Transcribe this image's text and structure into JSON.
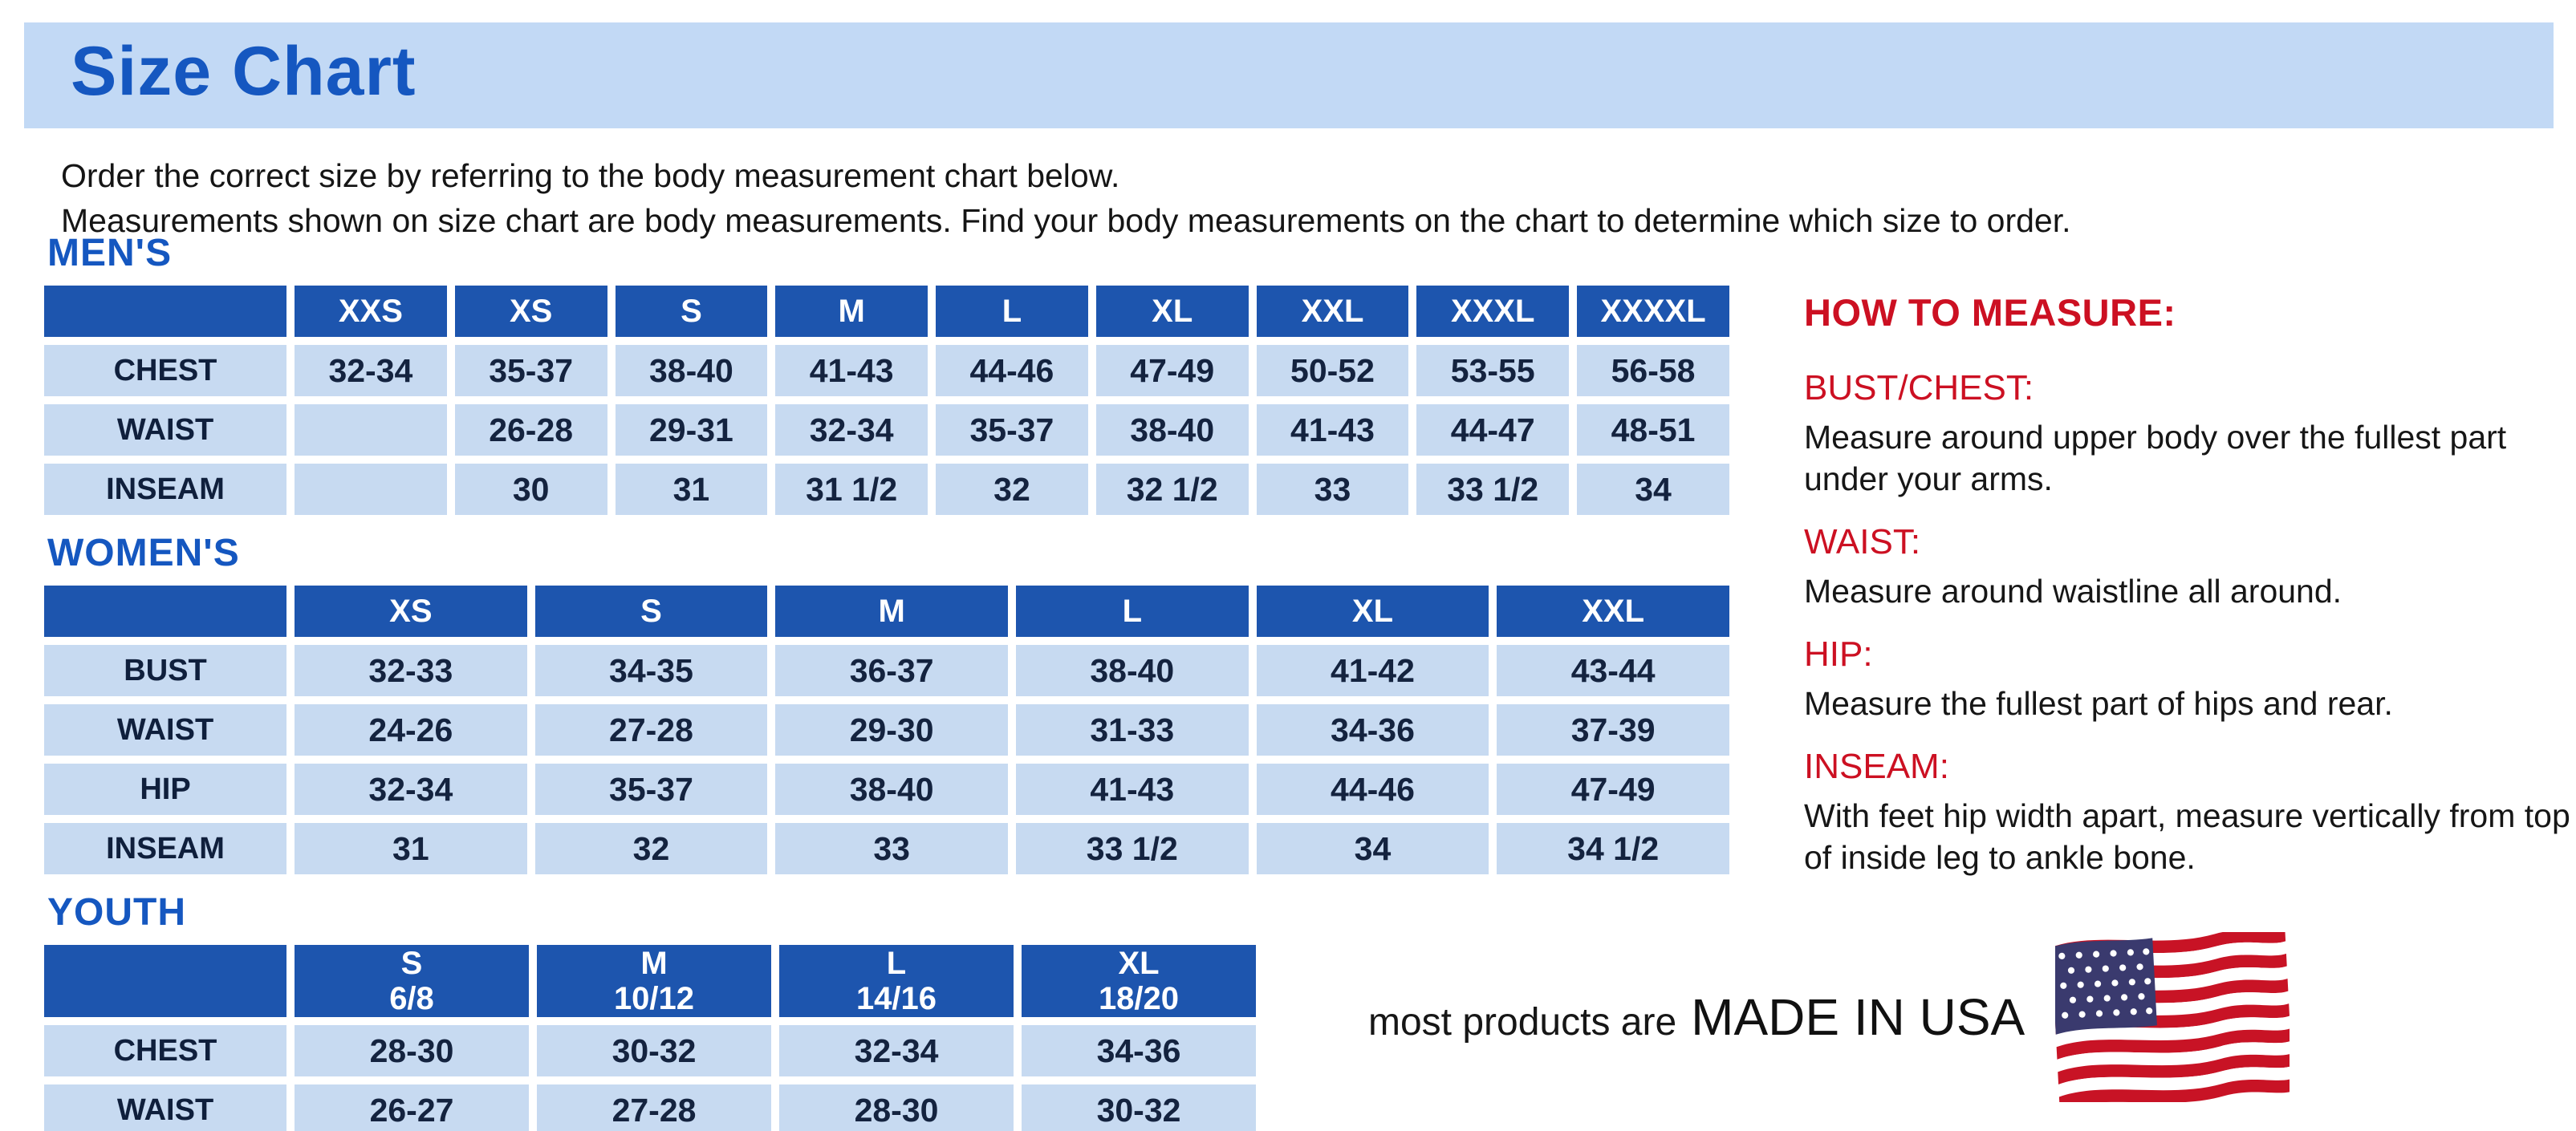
{
  "header": {
    "title": "Size Chart"
  },
  "intro": {
    "line1": "Order the correct size by referring to the body measurement chart below.",
    "line2": "Measurements shown on size chart are body measurements.  Find your body measurements on the chart to determine which size to order."
  },
  "tables": [
    {
      "id": "mens",
      "section_label": "MEN'S",
      "columns": [
        "XXS",
        "XS",
        "S",
        "M",
        "L",
        "XL",
        "XXL",
        "XXXL",
        "XXXXL"
      ],
      "rows": [
        {
          "label": "CHEST",
          "values": [
            "32-34",
            "35-37",
            "38-40",
            "41-43",
            "44-46",
            "47-49",
            "50-52",
            "53-55",
            "56-58"
          ]
        },
        {
          "label": "WAIST",
          "values": [
            "",
            "26-28",
            "29-31",
            "32-34",
            "35-37",
            "38-40",
            "41-43",
            "44-47",
            "48-51"
          ]
        },
        {
          "label": "INSEAM",
          "values": [
            "",
            "30",
            "31",
            "31 1/2",
            "32",
            "32 1/2",
            "33",
            "33 1/2",
            "34"
          ]
        }
      ]
    },
    {
      "id": "womens",
      "section_label": "WOMEN'S",
      "columns": [
        "XS",
        "S",
        "M",
        "L",
        "XL",
        "XXL"
      ],
      "rows": [
        {
          "label": "BUST",
          "values": [
            "32-33",
            "34-35",
            "36-37",
            "38-40",
            "41-42",
            "43-44"
          ]
        },
        {
          "label": "WAIST",
          "values": [
            "24-26",
            "27-28",
            "29-30",
            "31-33",
            "34-36",
            "37-39"
          ]
        },
        {
          "label": "HIP",
          "values": [
            "32-34",
            "35-37",
            "38-40",
            "41-43",
            "44-46",
            "47-49"
          ]
        },
        {
          "label": "INSEAM",
          "values": [
            "31",
            "32",
            "33",
            "33 1/2",
            "34",
            "34 1/2"
          ]
        }
      ]
    },
    {
      "id": "youth",
      "section_label": "YOUTH",
      "columns": [
        "S\n6/8",
        "M\n10/12",
        "L\n14/16",
        "XL\n18/20"
      ],
      "rows": [
        {
          "label": "CHEST",
          "values": [
            "28-30",
            "30-32",
            "32-34",
            "34-36"
          ]
        },
        {
          "label": "WAIST",
          "values": [
            "26-27",
            "27-28",
            "28-30",
            "30-32"
          ]
        }
      ]
    }
  ],
  "how_to_measure": {
    "title": "HOW TO MEASURE:",
    "items": [
      {
        "label": "BUST/CHEST:",
        "text": "Measure around upper body over the fullest part under your arms."
      },
      {
        "label": "WAIST:",
        "text": "Measure around waistline all around."
      },
      {
        "label": "HIP:",
        "text": "Measure the fullest part of hips and rear."
      },
      {
        "label": "INSEAM:",
        "text": "With feet hip width apart, measure vertically from top of inside leg to ankle bone."
      }
    ]
  },
  "footer": {
    "prefix": "most products are",
    "emphasis": "MADE IN USA",
    "flag_icon": "usa-flag-icon"
  },
  "colors": {
    "banner": "#c2d9f5",
    "blue": "#1557c0",
    "tblue": "#1d55ae",
    "cell": "#c7daf1",
    "red": "#cc1022",
    "flagred": "#c81325",
    "flagblue": "#3a3a6e"
  }
}
